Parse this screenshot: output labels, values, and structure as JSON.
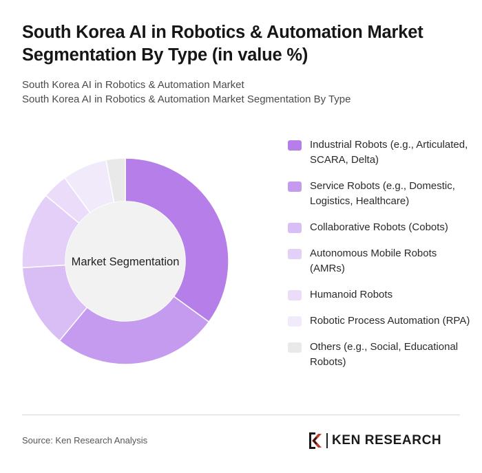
{
  "title": "South Korea AI in Robotics & Automation Market Segmentation By Type (in value %)",
  "subtitle_line1": "South Korea AI in Robotics & Automation Market",
  "subtitle_line2": "South Korea AI in Robotics & Automation Market Segmentation By Type",
  "chart_data": {
    "type": "pie",
    "variant": "donut",
    "center_label": "Market Segmentation",
    "legend_position": "right",
    "categories": [
      "Industrial Robots (e.g., Articulated, SCARA, Delta)",
      "Service Robots (e.g., Domestic, Logistics, Healthcare)",
      "Collaborative Robots (Cobots)",
      "Autonomous Mobile Robots (AMRs)",
      "Humanoid Robots",
      "Robotic Process Automation (RPA)",
      "Others (e.g., Social, Educational Robots)"
    ],
    "values": [
      35,
      26,
      13,
      12,
      4,
      7,
      3
    ],
    "colors": [
      "#b57ee9",
      "#c59bef",
      "#d9bdf5",
      "#e3cff7",
      "#ebdcfa",
      "#f1eafb",
      "#e9e9e9"
    ]
  },
  "source": "Source: Ken Research Analysis",
  "logo": {
    "text": "KEN RESEARCH",
    "icon": "ken-research-logo-icon"
  }
}
